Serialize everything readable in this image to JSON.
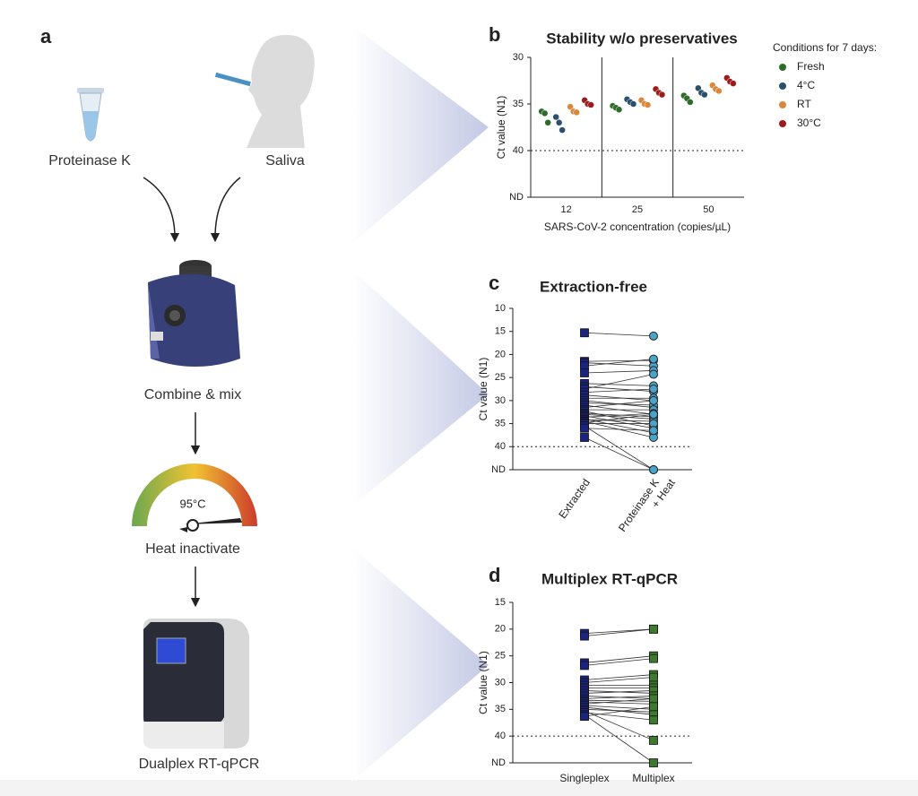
{
  "panel_a": {
    "label": "a",
    "reagent": "Proteinase K",
    "sample": "Saliva",
    "mix": "Combine & mix",
    "temperature": "95°C",
    "heat": "Heat inactivate",
    "readout": "Dualplex RT-qPCR"
  },
  "chart_data": [
    {
      "type": "strip",
      "panel_label": "b",
      "title": "Stability w/o preservatives",
      "y_label": "Ct value (N1)",
      "x_label": "SARS-CoV-2 concentration (copies/µL)",
      "legend_title": "Conditions for 7 days:",
      "legend": "right",
      "categories": [
        "12",
        "25",
        "50"
      ],
      "series": [
        {
          "name": "Fresh",
          "color": "#2e6b2a",
          "values": [
            [
              35.8,
              36.0,
              37.0
            ],
            [
              35.2,
              35.4,
              35.6
            ],
            [
              34.1,
              34.4,
              34.8
            ]
          ]
        },
        {
          "name": "4°C",
          "color": "#2d4f6e",
          "values": [
            [
              36.4,
              37.0,
              37.8
            ],
            [
              34.5,
              34.8,
              35.0
            ],
            [
              33.3,
              33.8,
              34.0
            ]
          ]
        },
        {
          "name": "RT",
          "color": "#d9873a",
          "values": [
            [
              35.3,
              35.8,
              35.9
            ],
            [
              34.6,
              35.0,
              35.1
            ],
            [
              33.0,
              33.4,
              33.6
            ]
          ]
        },
        {
          "name": "30°C",
          "color": "#9b1c1c",
          "values": [
            [
              34.6,
              35.0,
              35.1
            ],
            [
              33.4,
              33.8,
              34.0
            ],
            [
              32.2,
              32.6,
              32.8
            ]
          ]
        }
      ],
      "ylim": [
        45,
        30
      ],
      "yticks": [
        30,
        35,
        40,
        {
          "value": 45,
          "label": "ND"
        }
      ],
      "threshold": 40
    },
    {
      "type": "paired",
      "panel_label": "c",
      "title": "Extraction-free",
      "y_label": "Ct value (N1)",
      "categories": [
        "Extracted",
        "Proteinase K\n+ Heat"
      ],
      "colors": [
        "#1a237e",
        "#4ba3c7"
      ],
      "markers": [
        "square",
        "circle"
      ],
      "values": [
        [
          15.3,
          21.5,
          21.8,
          22.5,
          24.0,
          26.3,
          27.0,
          27.5,
          28.2,
          28.8,
          29.5,
          30.0,
          30.5,
          31.0,
          31.5,
          32.0,
          32.3,
          32.8,
          33.0,
          33.3,
          33.6,
          34.0,
          34.2,
          34.5,
          34.8,
          35.0,
          35.5,
          36.0,
          38.0
        ],
        [
          16.0,
          21.3,
          22.5,
          21.0,
          23.5,
          26.8,
          28.0,
          24.3,
          27.5,
          30.0,
          29.5,
          31.5,
          31.0,
          33.0,
          30.0,
          32.0,
          35.5,
          33.5,
          34.0,
          36.0,
          32.8,
          37.0,
          34.5,
          38.0,
          33.0,
          35.0,
          45,
          36.5,
          45
        ]
      ],
      "ylim": [
        45,
        10
      ],
      "yticks": [
        10,
        15,
        20,
        25,
        30,
        35,
        40,
        {
          "value": 45,
          "label": "ND"
        }
      ],
      "threshold": 40,
      "rotate_categories": true
    },
    {
      "type": "paired",
      "panel_label": "d",
      "title": "Multiplex RT-qPCR",
      "y_label": "Ct value (N1)",
      "categories": [
        "Singleplex",
        "Multiplex"
      ],
      "colors": [
        "#1a237e",
        "#3d7a2e"
      ],
      "markers": [
        "square",
        "square"
      ],
      "values": [
        [
          20.8,
          21.3,
          26.3,
          26.8,
          29.5,
          30.0,
          30.5,
          31.0,
          31.5,
          32.0,
          32.5,
          33.0,
          33.3,
          33.6,
          34.0,
          34.3,
          34.6,
          35.0,
          35.3,
          35.6,
          36.0,
          36.3
        ],
        [
          20.0,
          20.0,
          25.0,
          25.5,
          28.5,
          29.0,
          30.5,
          31.0,
          32.0,
          31.5,
          33.0,
          32.5,
          33.5,
          34.0,
          33.0,
          35.0,
          36.0,
          35.5,
          40.8,
          37.0,
          45,
          34.5
        ]
      ],
      "ylim": [
        45,
        15
      ],
      "yticks": [
        15,
        20,
        25,
        30,
        35,
        40,
        {
          "value": 45,
          "label": "ND"
        }
      ],
      "threshold": 40,
      "rotate_categories": false
    }
  ]
}
